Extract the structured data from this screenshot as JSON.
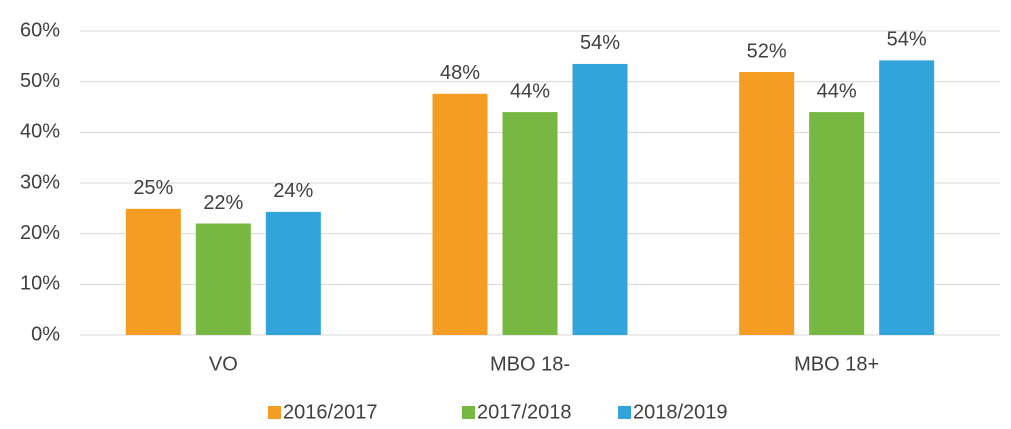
{
  "chart_data": {
    "type": "bar",
    "categories": [
      "VO",
      "MBO 18-",
      "MBO 18+"
    ],
    "series": [
      {
        "name": "2016/2017",
        "color": "#f59d23",
        "values": [
          24.9,
          47.6,
          51.9
        ],
        "value_labels": [
          "25%",
          "48%",
          "52%"
        ]
      },
      {
        "name": "2017/2018",
        "color": "#77b843",
        "values": [
          22,
          44,
          44
        ],
        "value_labels": [
          "22%",
          "44%",
          "44%"
        ]
      },
      {
        "name": "2018/2019",
        "color": "#33a3dc",
        "values": [
          24.3,
          53.5,
          54.2
        ],
        "value_labels": [
          "24%",
          "54%",
          "54%"
        ]
      }
    ],
    "ylim": [
      0,
      60
    ],
    "yticks": [
      {
        "value": 0,
        "label": "0%"
      },
      {
        "value": 10,
        "label": "10%"
      },
      {
        "value": 20,
        "label": "20%"
      },
      {
        "value": 30,
        "label": "30%"
      },
      {
        "value": 40,
        "label": "40%"
      },
      {
        "value": 50,
        "label": "50%"
      },
      {
        "value": 60,
        "label": "60%"
      }
    ],
    "grid": true,
    "legend": "bottom"
  }
}
